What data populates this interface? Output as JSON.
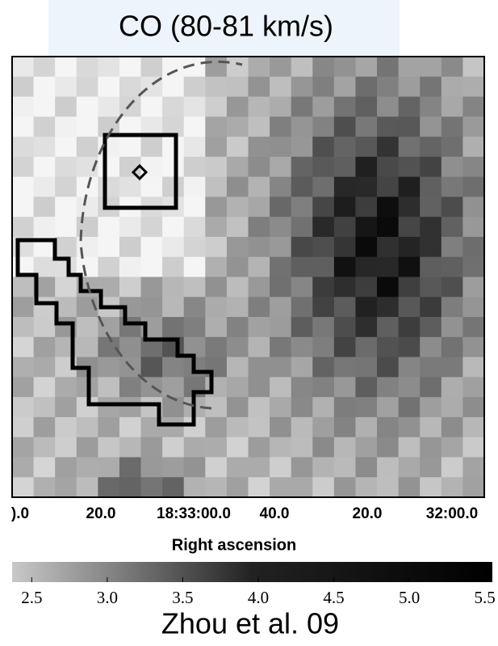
{
  "header": {
    "title": "CO (80-81 km/s)"
  },
  "x_axis": {
    "tick_labels": [
      ").0",
      "20.0",
      "18:33:00.0",
      "40.0",
      "20.0",
      "32:00.0"
    ],
    "label": "Right ascension"
  },
  "colorbar": {
    "lim": [
      2.37,
      5.55
    ],
    "ticks": [
      2.5,
      {
        "value": 3,
        "label": "3.0"
      },
      3.5,
      {
        "value": 4,
        "label": "4.0"
      },
      4.5,
      {
        "value": 5,
        "label": "5.0"
      },
      5.5
    ]
  },
  "footer": "Zhou et al. 09"
}
